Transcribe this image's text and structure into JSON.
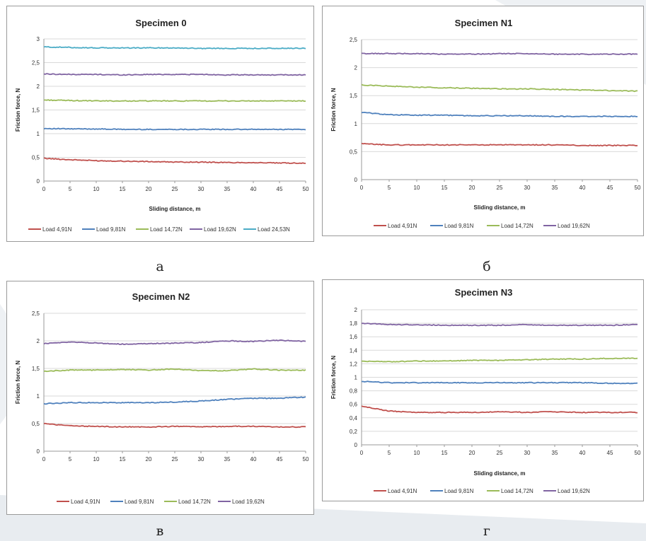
{
  "colors": {
    "load_491": "#c0504d",
    "load_981": "#4f81bd",
    "load_1472": "#9bbb59",
    "load_1962": "#8064a2",
    "load_2453": "#4bacc6"
  },
  "captions": {
    "a": "а",
    "b": "б",
    "v": "в",
    "g": "г"
  },
  "chart_data": [
    {
      "type": "line",
      "title": "Specimen 0",
      "xlabel": "Sliding distance, m",
      "ylabel": "Friction force, N",
      "xlim": [
        0,
        50
      ],
      "ylim": [
        0,
        3
      ],
      "x_ticks": [
        "0",
        "5",
        "10",
        "15",
        "20",
        "25",
        "30",
        "35",
        "40",
        "45",
        "50"
      ],
      "y_ticks": [
        "0",
        "0,5",
        "1",
        "1,5",
        "2",
        "2,5",
        "3"
      ],
      "grid": true,
      "legend": "bottom",
      "x": [
        0,
        5,
        10,
        15,
        20,
        25,
        30,
        35,
        40,
        45,
        50
      ],
      "series": [
        {
          "name": "Load 4,91N",
          "color": "#c0504d",
          "values": [
            0.48,
            0.45,
            0.43,
            0.42,
            0.41,
            0.4,
            0.4,
            0.39,
            0.39,
            0.38,
            0.38
          ]
        },
        {
          "name": "Load 9,81N",
          "color": "#4f81bd",
          "values": [
            1.11,
            1.1,
            1.1,
            1.09,
            1.09,
            1.09,
            1.09,
            1.09,
            1.09,
            1.09,
            1.09
          ]
        },
        {
          "name": "Load 14,72N",
          "color": "#9bbb59",
          "values": [
            1.71,
            1.7,
            1.69,
            1.69,
            1.69,
            1.69,
            1.69,
            1.69,
            1.69,
            1.69,
            1.69
          ]
        },
        {
          "name": "Load 19,62N",
          "color": "#8064a2",
          "values": [
            2.26,
            2.25,
            2.25,
            2.24,
            2.25,
            2.25,
            2.25,
            2.24,
            2.24,
            2.24,
            2.24
          ]
        },
        {
          "name": "Load 24,53N",
          "color": "#4bacc6",
          "values": [
            2.83,
            2.82,
            2.81,
            2.81,
            2.81,
            2.81,
            2.8,
            2.8,
            2.8,
            2.8,
            2.8
          ]
        }
      ]
    },
    {
      "type": "line",
      "title": "Specimen N1",
      "xlabel": "Sliding distance, m",
      "ylabel": "Friction force, N",
      "xlim": [
        0,
        50
      ],
      "ylim": [
        0,
        2.5
      ],
      "x_ticks": [
        "0",
        "5",
        "10",
        "15",
        "20",
        "25",
        "30",
        "35",
        "40",
        "45",
        "50"
      ],
      "y_ticks": [
        "0",
        "0,5",
        "1",
        "1,5",
        "2",
        "2,5"
      ],
      "grid": true,
      "legend": "bottom",
      "x": [
        0,
        5,
        10,
        15,
        20,
        25,
        30,
        35,
        40,
        45,
        50
      ],
      "series": [
        {
          "name": "Load 4,91N",
          "color": "#c0504d",
          "values": [
            0.64,
            0.62,
            0.62,
            0.62,
            0.62,
            0.62,
            0.62,
            0.62,
            0.61,
            0.61,
            0.61
          ]
        },
        {
          "name": "Load 9,81N",
          "color": "#4f81bd",
          "values": [
            1.2,
            1.16,
            1.15,
            1.15,
            1.14,
            1.14,
            1.14,
            1.13,
            1.13,
            1.13,
            1.13
          ]
        },
        {
          "name": "Load 14,72N",
          "color": "#9bbb59",
          "values": [
            1.69,
            1.67,
            1.65,
            1.64,
            1.63,
            1.62,
            1.62,
            1.61,
            1.6,
            1.59,
            1.58
          ]
        },
        {
          "name": "Load 19,62N",
          "color": "#8064a2",
          "values": [
            2.25,
            2.25,
            2.25,
            2.24,
            2.24,
            2.25,
            2.25,
            2.24,
            2.24,
            2.24,
            2.24
          ]
        }
      ]
    },
    {
      "type": "line",
      "title": "Specimen N2",
      "xlabel": "",
      "ylabel": "Friction force, N",
      "xlim": [
        0,
        50
      ],
      "ylim": [
        0,
        2.5
      ],
      "x_ticks": [
        "0",
        "5",
        "10",
        "15",
        "20",
        "25",
        "30",
        "35",
        "40",
        "45",
        "50"
      ],
      "y_ticks": [
        "0",
        "0,5",
        "1",
        "1,5",
        "2",
        "2,5"
      ],
      "grid": true,
      "legend": "bottom",
      "x": [
        0,
        5,
        10,
        15,
        20,
        25,
        30,
        35,
        40,
        45,
        50
      ],
      "series": [
        {
          "name": "Load 4,91N",
          "color": "#c0504d",
          "values": [
            0.5,
            0.46,
            0.45,
            0.44,
            0.44,
            0.45,
            0.44,
            0.45,
            0.45,
            0.44,
            0.44
          ]
        },
        {
          "name": "Load 9,81N",
          "color": "#4f81bd",
          "values": [
            0.86,
            0.88,
            0.88,
            0.88,
            0.88,
            0.89,
            0.91,
            0.94,
            0.96,
            0.96,
            0.98
          ]
        },
        {
          "name": "Load 14,72N",
          "color": "#9bbb59",
          "values": [
            1.45,
            1.47,
            1.47,
            1.48,
            1.47,
            1.49,
            1.46,
            1.46,
            1.49,
            1.47,
            1.47
          ]
        },
        {
          "name": "Load 19,62N",
          "color": "#8064a2",
          "values": [
            1.95,
            1.98,
            1.96,
            1.94,
            1.95,
            1.96,
            1.97,
            2.0,
            1.99,
            2.01,
            1.99
          ]
        }
      ]
    },
    {
      "type": "line",
      "title": "Specimen N3",
      "xlabel": "Sliding distance, m",
      "ylabel": "Friction force, N",
      "xlim": [
        0,
        50
      ],
      "ylim": [
        0,
        2
      ],
      "x_ticks": [
        "0",
        "5",
        "10",
        "15",
        "20",
        "25",
        "30",
        "35",
        "40",
        "45",
        "50"
      ],
      "y_ticks": [
        "0",
        "0,2",
        "0,4",
        "0,6",
        "0,8",
        "1",
        "1,2",
        "1,4",
        "1,6",
        "1,8",
        "2"
      ],
      "grid": true,
      "legend": "bottom",
      "x": [
        0,
        5,
        10,
        15,
        20,
        25,
        30,
        35,
        40,
        45,
        50
      ],
      "series": [
        {
          "name": "Load 4,91N",
          "color": "#c0504d",
          "values": [
            0.57,
            0.5,
            0.48,
            0.48,
            0.48,
            0.49,
            0.48,
            0.49,
            0.48,
            0.48,
            0.48
          ]
        },
        {
          "name": "Load 9,81N",
          "color": "#4f81bd",
          "values": [
            0.94,
            0.92,
            0.92,
            0.92,
            0.92,
            0.92,
            0.92,
            0.92,
            0.92,
            0.91,
            0.91
          ]
        },
        {
          "name": "Load 14,72N",
          "color": "#9bbb59",
          "values": [
            1.24,
            1.23,
            1.24,
            1.24,
            1.25,
            1.25,
            1.26,
            1.27,
            1.27,
            1.28,
            1.28
          ]
        },
        {
          "name": "Load 19,62N",
          "color": "#8064a2",
          "values": [
            1.8,
            1.78,
            1.78,
            1.77,
            1.77,
            1.77,
            1.78,
            1.77,
            1.77,
            1.77,
            1.78
          ]
        }
      ]
    }
  ]
}
